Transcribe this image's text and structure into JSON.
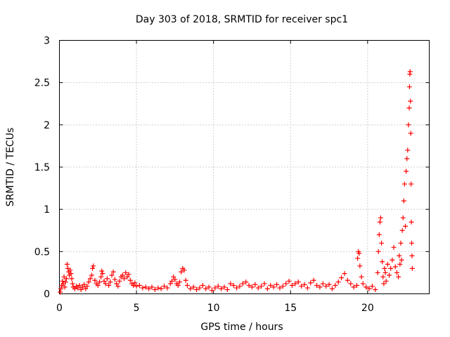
{
  "chart_data": {
    "type": "scatter",
    "title": "Day 303 of 2018, SRMTID for receiver spc1",
    "xlabel": "GPS time / hours",
    "ylabel": "SRMTID / TECUs",
    "xlim": [
      0,
      24
    ],
    "ylim": [
      0,
      3
    ],
    "xticks": [
      0,
      5,
      10,
      15,
      20
    ],
    "yticks": [
      0,
      0.5,
      1,
      1.5,
      2,
      2.5,
      3
    ],
    "xtick_labels": [
      "0",
      "5",
      "10",
      "15",
      "20"
    ],
    "ytick_labels": [
      "0",
      "0.5",
      "1",
      "1.5",
      "2",
      "2.5",
      "3"
    ],
    "grid": true,
    "legend": "none",
    "marker": "+",
    "series": [
      {
        "name": "spc1",
        "color": "#ff0000",
        "points": [
          [
            0.05,
            0.02
          ],
          [
            0.1,
            0.06
          ],
          [
            0.15,
            0.1
          ],
          [
            0.2,
            0.15
          ],
          [
            0.25,
            0.12
          ],
          [
            0.3,
            0.2
          ],
          [
            0.35,
            0.08
          ],
          [
            0.4,
            0.14
          ],
          [
            0.45,
            0.18
          ],
          [
            0.5,
            0.35
          ],
          [
            0.55,
            0.3
          ],
          [
            0.6,
            0.26
          ],
          [
            0.65,
            0.22
          ],
          [
            0.7,
            0.28
          ],
          [
            0.75,
            0.24
          ],
          [
            0.8,
            0.18
          ],
          [
            0.85,
            0.12
          ],
          [
            0.9,
            0.08
          ],
          [
            1.0,
            0.06
          ],
          [
            1.1,
            0.09
          ],
          [
            1.2,
            0.07
          ],
          [
            1.3,
            0.1
          ],
          [
            1.4,
            0.05
          ],
          [
            1.5,
            0.08
          ],
          [
            1.6,
            0.11
          ],
          [
            1.7,
            0.06
          ],
          [
            1.8,
            0.09
          ],
          [
            1.9,
            0.14
          ],
          [
            2.0,
            0.18
          ],
          [
            2.1,
            0.22
          ],
          [
            2.15,
            0.3
          ],
          [
            2.2,
            0.33
          ],
          [
            2.3,
            0.16
          ],
          [
            2.4,
            0.12
          ],
          [
            2.5,
            0.1
          ],
          [
            2.6,
            0.14
          ],
          [
            2.7,
            0.2
          ],
          [
            2.75,
            0.27
          ],
          [
            2.8,
            0.24
          ],
          [
            2.9,
            0.15
          ],
          [
            3.0,
            0.12
          ],
          [
            3.1,
            0.18
          ],
          [
            3.2,
            0.1
          ],
          [
            3.3,
            0.14
          ],
          [
            3.4,
            0.22
          ],
          [
            3.5,
            0.26
          ],
          [
            3.6,
            0.17
          ],
          [
            3.7,
            0.12
          ],
          [
            3.8,
            0.09
          ],
          [
            3.9,
            0.15
          ],
          [
            4.0,
            0.2
          ],
          [
            4.1,
            0.22
          ],
          [
            4.2,
            0.18
          ],
          [
            4.3,
            0.25
          ],
          [
            4.4,
            0.2
          ],
          [
            4.5,
            0.23
          ],
          [
            4.6,
            0.16
          ],
          [
            4.7,
            0.12
          ],
          [
            4.8,
            0.1
          ],
          [
            4.9,
            0.13
          ],
          [
            5.0,
            0.09
          ],
          [
            5.2,
            0.1
          ],
          [
            5.4,
            0.07
          ],
          [
            5.6,
            0.08
          ],
          [
            5.8,
            0.06
          ],
          [
            6.0,
            0.08
          ],
          [
            6.2,
            0.05
          ],
          [
            6.4,
            0.07
          ],
          [
            6.6,
            0.06
          ],
          [
            6.8,
            0.09
          ],
          [
            7.0,
            0.07
          ],
          [
            7.2,
            0.12
          ],
          [
            7.3,
            0.15
          ],
          [
            7.4,
            0.2
          ],
          [
            7.5,
            0.17
          ],
          [
            7.6,
            0.12
          ],
          [
            7.7,
            0.1
          ],
          [
            7.8,
            0.14
          ],
          [
            7.9,
            0.26
          ],
          [
            8.0,
            0.3
          ],
          [
            8.1,
            0.28
          ],
          [
            8.2,
            0.16
          ],
          [
            8.3,
            0.1
          ],
          [
            8.5,
            0.06
          ],
          [
            8.7,
            0.08
          ],
          [
            8.9,
            0.05
          ],
          [
            9.1,
            0.07
          ],
          [
            9.3,
            0.1
          ],
          [
            9.5,
            0.06
          ],
          [
            9.7,
            0.08
          ],
          [
            9.9,
            0.04
          ],
          [
            10.1,
            0.07
          ],
          [
            10.3,
            0.09
          ],
          [
            10.5,
            0.06
          ],
          [
            10.7,
            0.08
          ],
          [
            10.9,
            0.05
          ],
          [
            11.1,
            0.12
          ],
          [
            11.3,
            0.1
          ],
          [
            11.5,
            0.07
          ],
          [
            11.7,
            0.09
          ],
          [
            11.9,
            0.12
          ],
          [
            12.1,
            0.14
          ],
          [
            12.3,
            0.1
          ],
          [
            12.5,
            0.08
          ],
          [
            12.7,
            0.11
          ],
          [
            12.9,
            0.07
          ],
          [
            13.1,
            0.09
          ],
          [
            13.3,
            0.12
          ],
          [
            13.5,
            0.06
          ],
          [
            13.7,
            0.1
          ],
          [
            13.9,
            0.08
          ],
          [
            14.1,
            0.11
          ],
          [
            14.3,
            0.07
          ],
          [
            14.5,
            0.09
          ],
          [
            14.7,
            0.12
          ],
          [
            14.9,
            0.15
          ],
          [
            15.1,
            0.1
          ],
          [
            15.3,
            0.12
          ],
          [
            15.5,
            0.14
          ],
          [
            15.7,
            0.09
          ],
          [
            15.9,
            0.11
          ],
          [
            16.1,
            0.07
          ],
          [
            16.3,
            0.13
          ],
          [
            16.5,
            0.16
          ],
          [
            16.7,
            0.1
          ],
          [
            16.9,
            0.08
          ],
          [
            17.1,
            0.12
          ],
          [
            17.3,
            0.09
          ],
          [
            17.5,
            0.11
          ],
          [
            17.7,
            0.06
          ],
          [
            17.9,
            0.1
          ],
          [
            18.1,
            0.14
          ],
          [
            18.3,
            0.19
          ],
          [
            18.5,
            0.24
          ],
          [
            18.7,
            0.16
          ],
          [
            18.9,
            0.12
          ],
          [
            19.1,
            0.08
          ],
          [
            19.3,
            0.1
          ],
          [
            19.35,
            0.42
          ],
          [
            19.4,
            0.5
          ],
          [
            19.45,
            0.48
          ],
          [
            19.5,
            0.33
          ],
          [
            19.6,
            0.2
          ],
          [
            19.7,
            0.12
          ],
          [
            19.9,
            0.08
          ],
          [
            20.1,
            0.06
          ],
          [
            20.3,
            0.09
          ],
          [
            20.5,
            0.05
          ],
          [
            20.65,
            0.25
          ],
          [
            20.7,
            0.5
          ],
          [
            20.75,
            0.7
          ],
          [
            20.8,
            0.85
          ],
          [
            20.85,
            0.9
          ],
          [
            20.9,
            0.6
          ],
          [
            20.95,
            0.38
          ],
          [
            21.0,
            0.2
          ],
          [
            21.05,
            0.12
          ],
          [
            21.1,
            0.3
          ],
          [
            21.15,
            0.25
          ],
          [
            21.2,
            0.15
          ],
          [
            21.3,
            0.35
          ],
          [
            21.4,
            0.22
          ],
          [
            21.5,
            0.3
          ],
          [
            21.6,
            0.4
          ],
          [
            21.7,
            0.55
          ],
          [
            21.8,
            0.32
          ],
          [
            21.9,
            0.25
          ],
          [
            22.0,
            0.2
          ],
          [
            22.05,
            0.45
          ],
          [
            22.1,
            0.35
          ],
          [
            22.15,
            0.6
          ],
          [
            22.2,
            0.4
          ],
          [
            22.25,
            0.75
          ],
          [
            22.3,
            0.9
          ],
          [
            22.35,
            1.1
          ],
          [
            22.4,
            1.3
          ],
          [
            22.45,
            0.8
          ],
          [
            22.5,
            1.45
          ],
          [
            22.55,
            1.6
          ],
          [
            22.6,
            1.7
          ],
          [
            22.65,
            2.0
          ],
          [
            22.7,
            2.2
          ],
          [
            22.72,
            2.45
          ],
          [
            22.74,
            2.6
          ],
          [
            22.76,
            2.63
          ],
          [
            22.78,
            2.28
          ],
          [
            22.8,
            1.9
          ],
          [
            22.82,
            1.3
          ],
          [
            22.84,
            0.85
          ],
          [
            22.86,
            0.6
          ],
          [
            22.88,
            0.45
          ],
          [
            22.9,
            0.3
          ]
        ]
      }
    ]
  }
}
